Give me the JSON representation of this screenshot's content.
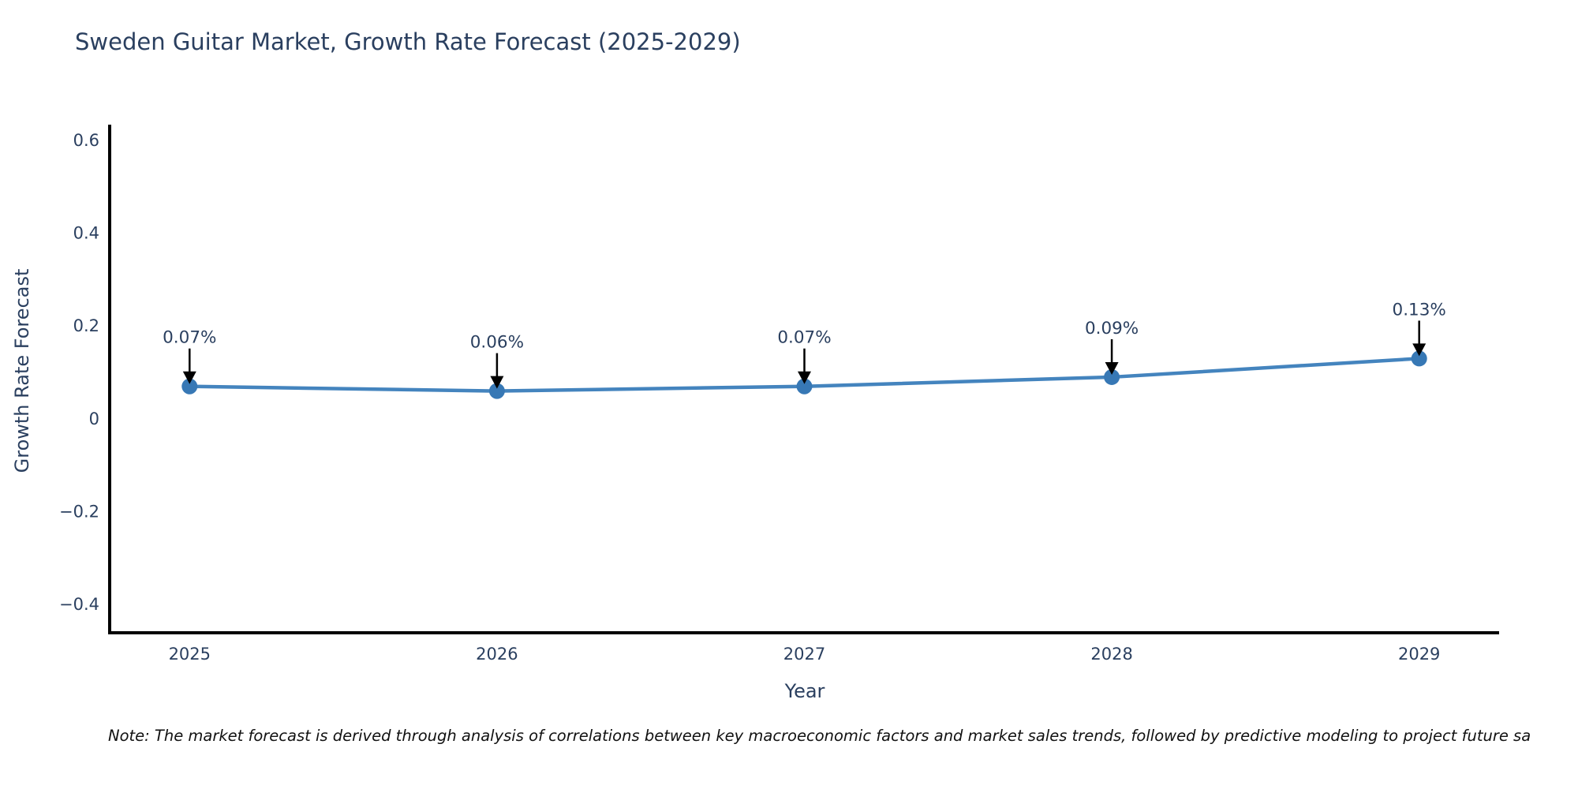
{
  "chart_data": {
    "type": "line",
    "title": "Sweden Guitar Market, Growth Rate Forecast (2025-2029)",
    "xlabel": "Year",
    "ylabel": "Growth Rate Forecast",
    "x": [
      2025,
      2026,
      2027,
      2028,
      2029
    ],
    "y": [
      0.07,
      0.06,
      0.07,
      0.09,
      0.13
    ],
    "point_labels": [
      "0.07%",
      "0.06%",
      "0.07%",
      "0.09%",
      "0.13%"
    ],
    "xtick_labels": [
      "2025",
      "2026",
      "2027",
      "2028",
      "2029"
    ],
    "yticks": [
      0.6,
      0.4,
      0.2,
      0,
      -0.2,
      -0.4
    ],
    "ytick_labels": [
      "0.6",
      "0.4",
      "0.2",
      "0",
      "−0.2",
      "−0.4"
    ],
    "xlim": [
      2024.74,
      2029.26
    ],
    "ylim": [
      -0.461,
      0.634
    ],
    "grid": false,
    "legend_visible": false,
    "annotation_style": "down-arrow",
    "colors": {
      "line": "#4484be",
      "marker": "#3778b5",
      "axis": "#000000",
      "tick_text": "#2a3f5f",
      "annotation_text": "#2a3f5f",
      "annotation_arrow": "#000000"
    },
    "note": "Note: The market forecast is derived through analysis of correlations between key macroeconomic factors and market sales trends, followed by predictive modeling to project future sa"
  }
}
